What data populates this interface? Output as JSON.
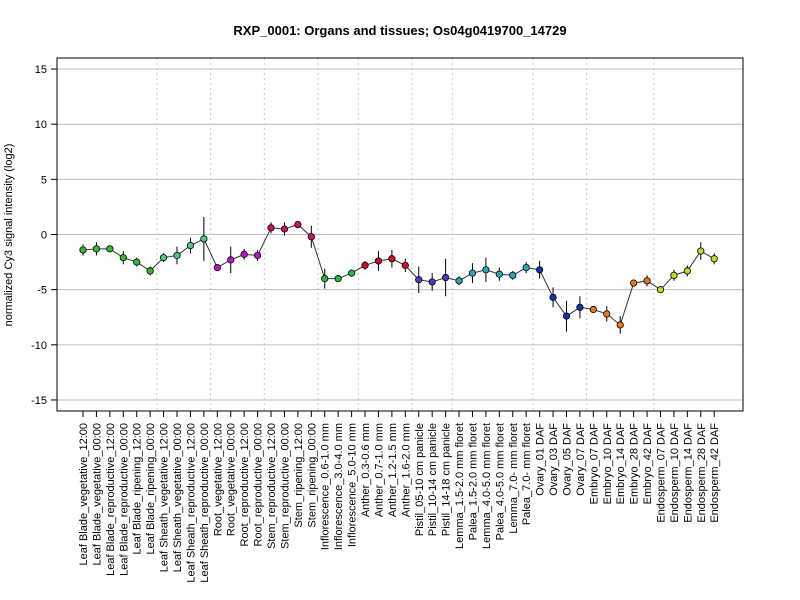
{
  "chart_data": {
    "type": "line",
    "title": "RXP_0001: Organs and tissues; Os04g0419700_14729",
    "xlabel": "",
    "ylabel": "normalized Cy3 signal intensity (log2)",
    "ylim": [
      -16,
      16
    ],
    "yticks": [
      -15,
      -10,
      -5,
      0,
      5,
      10,
      15
    ],
    "grid": "horizontal at y ticks; dotted vertical separators between tissue groups",
    "categories": [
      "Leaf Blade_vegetative_12:00",
      "Leaf Blade_vegetative_00:00",
      "Leaf Blade_reproductive_12:00",
      "Leaf Blade_reproductive_00:00",
      "Leaf Blade_ripening_12:00",
      "Leaf Blade_ripening_00:00",
      "Leaf Sheath_vegetative_12:00",
      "Leaf Sheath_vegetative_00:00",
      "Leaf Sheath_reproductive_12:00",
      "Leaf Sheath_reproductive_00:00",
      "Root_vegetative_12:00",
      "Root_vegetative_00:00",
      "Root_reproductive_12:00",
      "Root_reproductive_00:00",
      "Stem_reproductive_12:00",
      "Stem_reproductive_00:00",
      "Stem_ripening_12:00",
      "Stem_ripening_00:00",
      "Inflorescence_0.6-1.0 mm",
      "Inflorescence_3.0-4.0 mm",
      "Inflorescence_5.0-10 mm",
      "Anther_0.3-0.6 mm",
      "Anther_0.7-1.0 mm",
      "Anther_1.2-1.5 mm",
      "Anther_1.6-2.0 mm",
      "Pistil_05-10 cm panicle",
      "Pistil_10-14 cm panicle",
      "Pistil_14-18 cm panicle",
      "Lemma_1.5-2.0 mm floret",
      "Palea_1.5-2.0 mm floret",
      "Lemma_4.0-5.0 mm floret",
      "Palea_4.0-5.0 mm floret",
      "Lemma_7.0- mm floret",
      "Palea_7.0- mm floret",
      "Ovary_01 DAF",
      "Ovary_03 DAF",
      "Ovary_05 DAF",
      "Ovary_07 DAF",
      "Embryo_07 DAF",
      "Embryo_10 DAF",
      "Embryo_14 DAF",
      "Embryo_28 DAF",
      "Embryo_42 DAF",
      "Endosperm_07 DAF",
      "Endosperm_10 DAF",
      "Endosperm_14 DAF",
      "Endosperm_28 DAF",
      "Endosperm_42 DAF"
    ],
    "series": [
      {
        "values": [
          -1.4,
          -1.3,
          -1.3,
          -2.1,
          -2.5,
          -3.3,
          -2.1,
          -1.9,
          -1.0,
          -0.4,
          -3.0,
          -2.3,
          -1.8,
          -1.9,
          0.6,
          0.5,
          0.9,
          -0.2,
          -4.0,
          -4.0,
          -3.5,
          -2.8,
          -2.4,
          -2.2,
          -2.8,
          -4.1,
          -4.3,
          -3.9,
          -4.2,
          -3.5,
          -3.2,
          -3.6,
          -3.7,
          -3.0,
          -3.2,
          -5.7,
          -7.4,
          -6.6,
          -6.8,
          -7.2,
          -8.2,
          -4.4,
          -4.2,
          -5.0,
          -3.7,
          -3.3,
          -1.5,
          -2.2
        ],
        "errors": [
          0.5,
          0.6,
          0.3,
          0.6,
          0.4,
          0.4,
          0.4,
          0.8,
          0.7,
          2.0,
          0.3,
          1.2,
          0.5,
          0.5,
          0.5,
          0.6,
          0.2,
          1.0,
          0.9,
          0.3,
          0.3,
          0.4,
          0.9,
          0.8,
          0.6,
          1.2,
          0.8,
          1.7,
          0.4,
          0.9,
          1.1,
          0.6,
          0.4,
          0.5,
          0.8,
          0.9,
          1.4,
          1.0,
          0.2,
          0.7,
          0.8,
          0.3,
          0.5,
          0.3,
          0.5,
          0.5,
          0.8,
          0.5
        ],
        "colors": [
          "#2ebd2e",
          "#2ebd2e",
          "#2ebd2e",
          "#2ebd2e",
          "#2ebd2e",
          "#2ebd2e",
          "#44cc88",
          "#44cc88",
          "#44cc88",
          "#44cc88",
          "#bb11cc",
          "#bb11cc",
          "#bb11cc",
          "#bb11cc",
          "#cc1166",
          "#cc1166",
          "#cc1166",
          "#cc1166",
          "#22bb44",
          "#22bb44",
          "#22bb44",
          "#cc1122",
          "#cc1122",
          "#cc1122",
          "#cc1122",
          "#5533cc",
          "#5533cc",
          "#5533cc",
          "#2aa8b8",
          "#2aa8b8",
          "#2aa8b8",
          "#2aa8b8",
          "#2aa8b8",
          "#2aa8b8",
          "#1133bb",
          "#1133bb",
          "#1133bb",
          "#1133bb",
          "#ee7711",
          "#ee7711",
          "#ee7711",
          "#ee7711",
          "#ee7711",
          "#bbdd22",
          "#bbdd22",
          "#bbdd22",
          "#bbdd22",
          "#bbdd22"
        ]
      }
    ],
    "group_separators_after_index": [
      5,
      9,
      13,
      17,
      20,
      24,
      27,
      33,
      37,
      42
    ]
  }
}
